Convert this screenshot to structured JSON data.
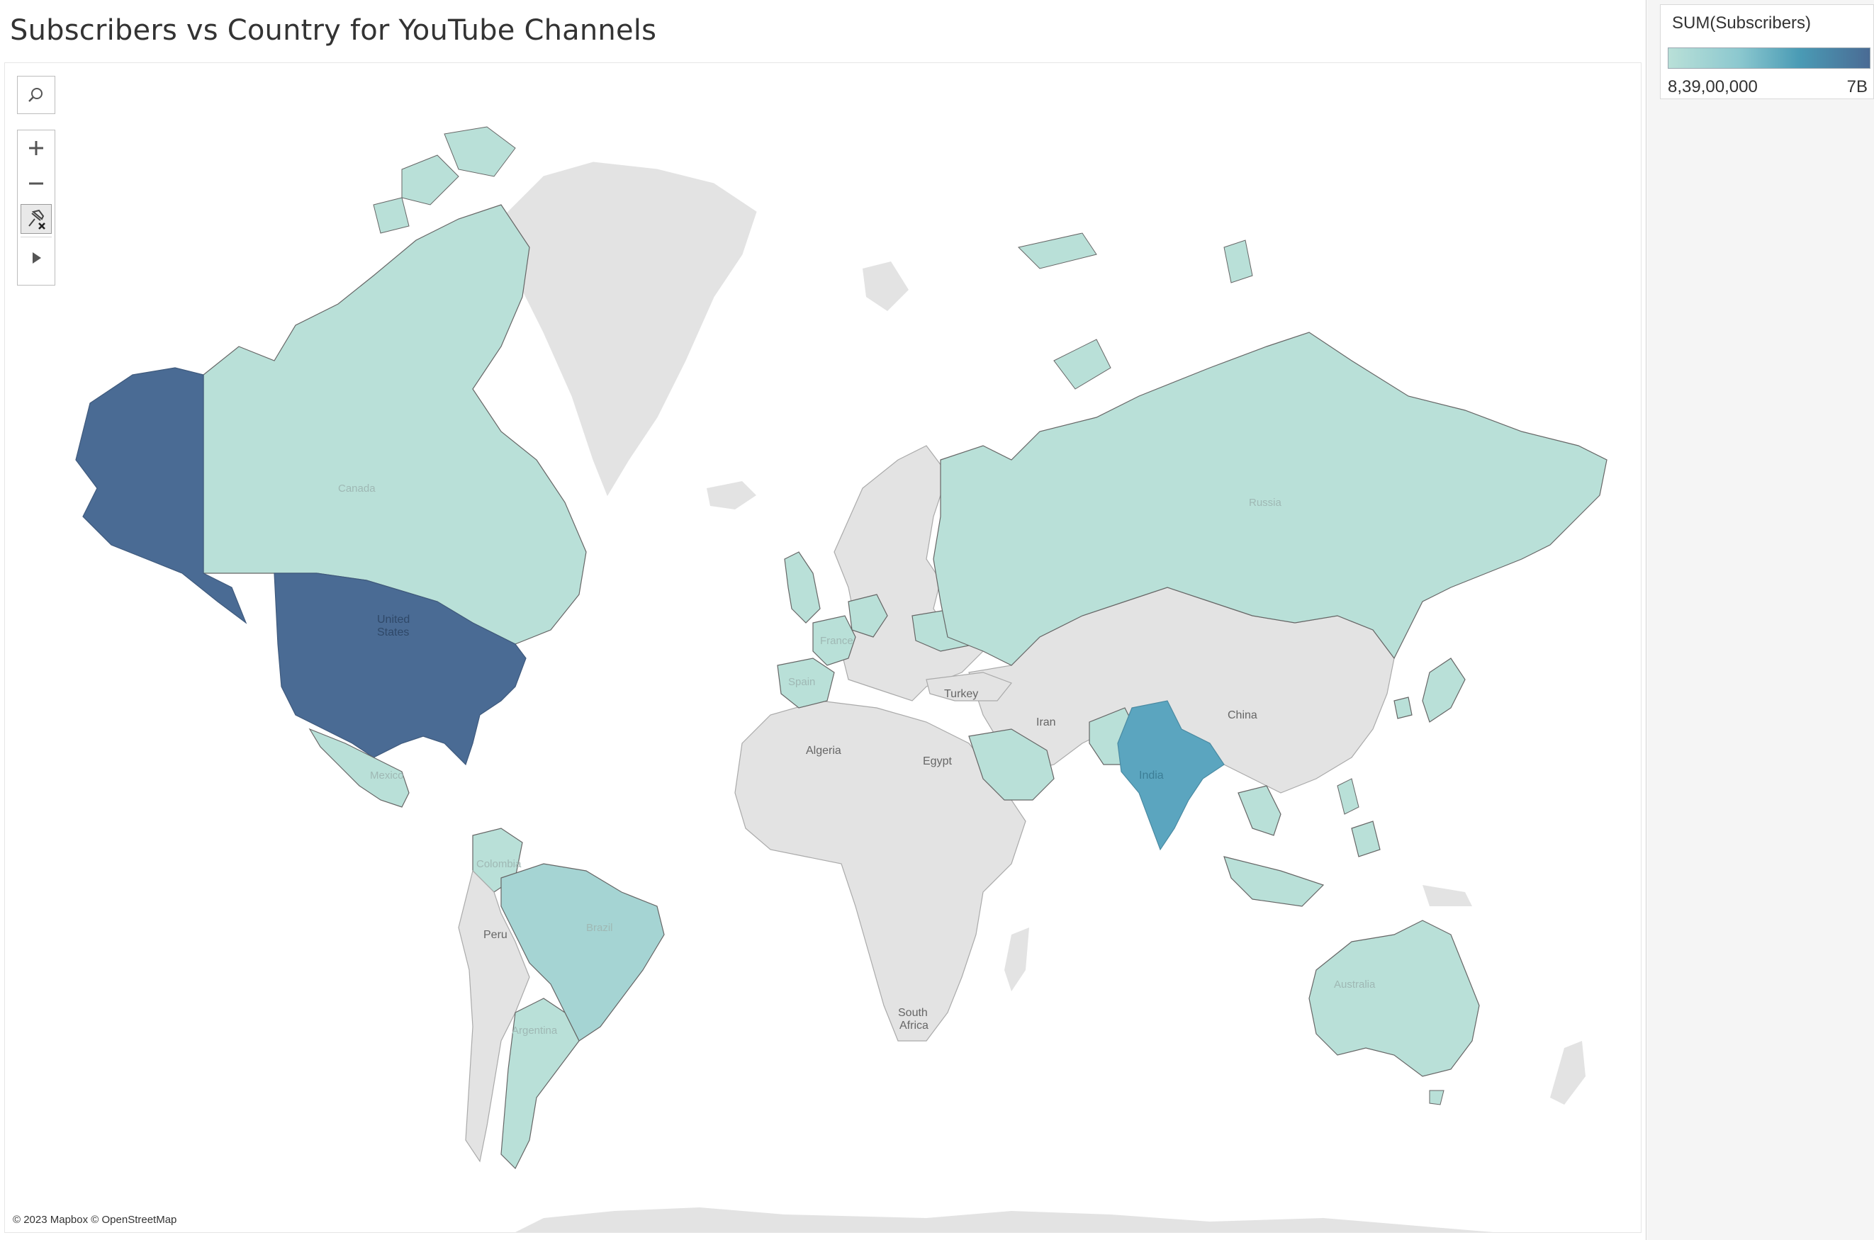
{
  "title": "Subscribers vs Country for YouTube Channels",
  "legend": {
    "title": "SUM(Subscribers)",
    "min_label": "8,39,00,000",
    "max_label": "7B",
    "color_low": "#b9e0d8",
    "color_high": "#4a6b94"
  },
  "map": {
    "attribution": "© 2023 Mapbox © OpenStreetMap",
    "labels": {
      "canada": "Canada",
      "united_states": "United States",
      "united_states_line1": "United",
      "united_states_line2": "States",
      "mexico": "Mexico",
      "colombia": "Colombia",
      "brazil": "Brazil",
      "peru": "Peru",
      "argentina": "Argentina",
      "algeria": "Algeria",
      "egypt": "Egypt",
      "turkey": "Turkey",
      "iran": "Iran",
      "china": "China",
      "india": "India",
      "russia": "Russia",
      "australia": "Australia",
      "south_africa_line1": "South",
      "south_africa_line2": "Africa",
      "spain": "Spain",
      "france": "France"
    },
    "colors": {
      "water": "#ffffff",
      "no_data_land": "#e3e3e3",
      "border": "#666666",
      "level_low": "#b9e0d8",
      "level_brazil": "#a5d4d3",
      "level_india": "#5ba5bf",
      "level_usa": "#4a6b94"
    }
  },
  "toolbar": {
    "search_icon": "search-icon",
    "zoom_in_icon": "plus-icon",
    "zoom_out_icon": "minus-icon",
    "pin_icon": "pin-reset-icon",
    "expand_icon": "play-arrow-icon"
  }
}
